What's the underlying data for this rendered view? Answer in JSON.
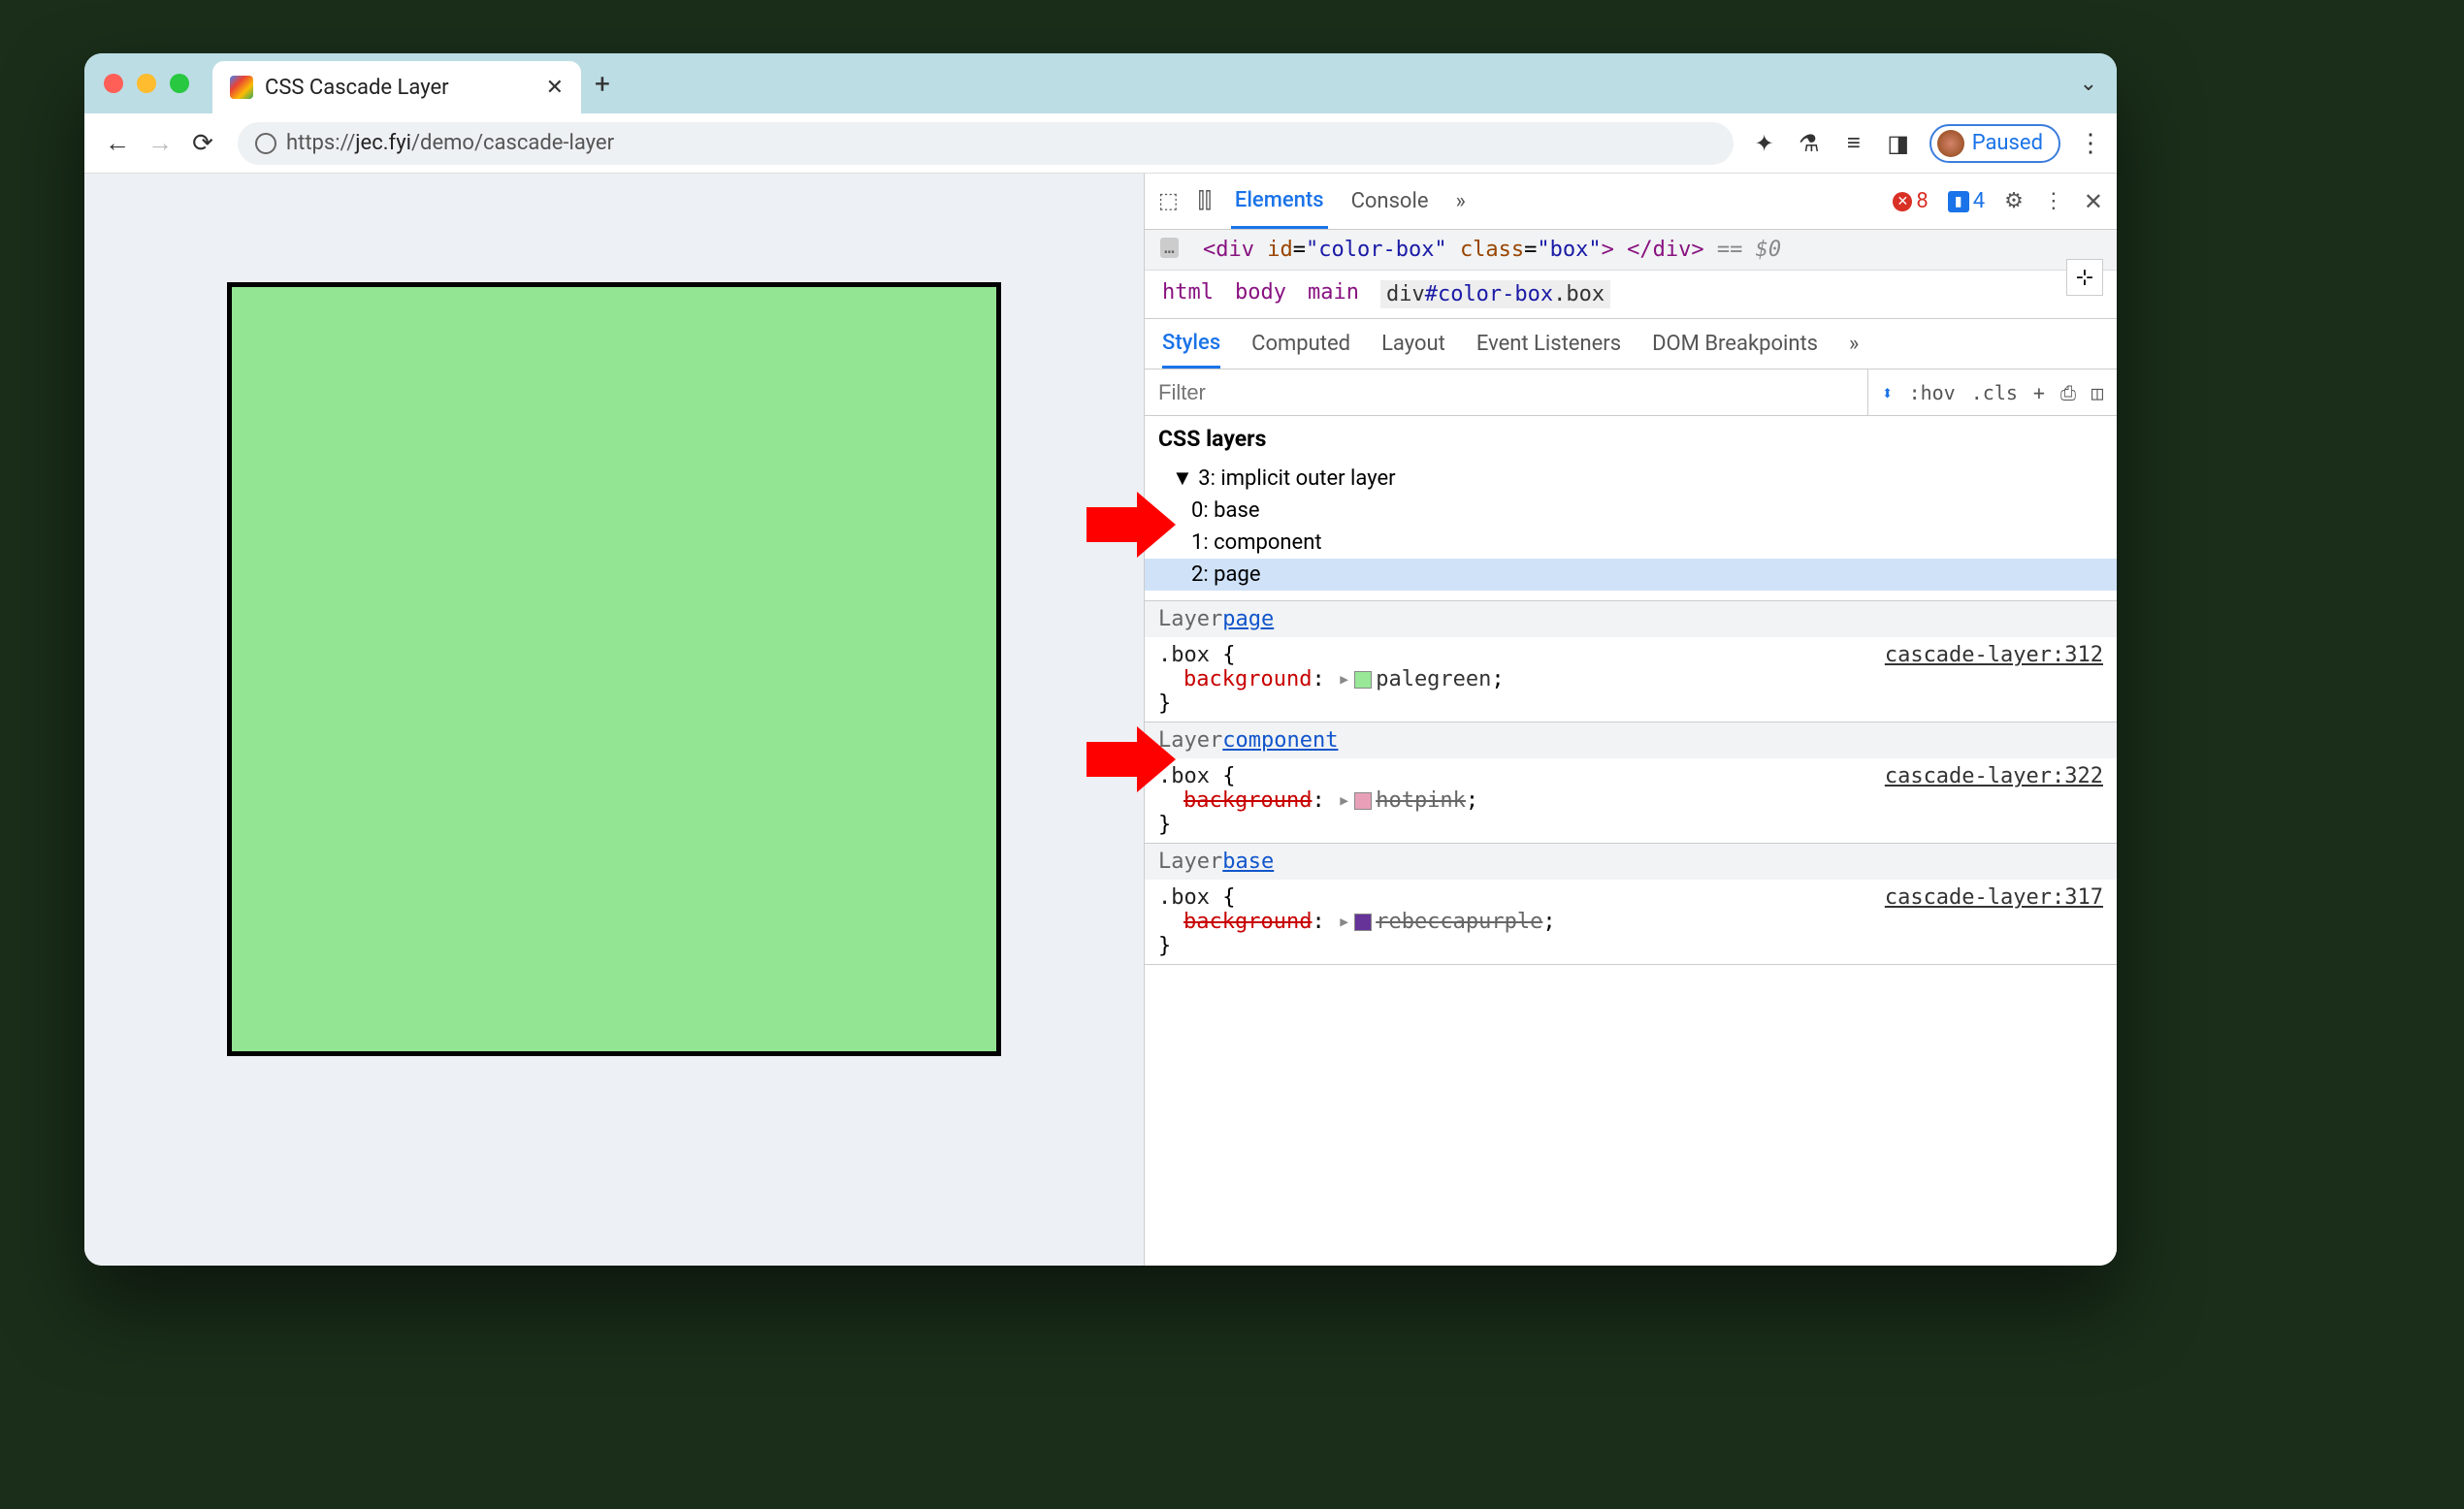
{
  "tab": {
    "title": "CSS Cascade Layer"
  },
  "url": {
    "scheme": "https://",
    "host": "jec.fyi",
    "path": "/demo/cascade-layer"
  },
  "toolbar": {
    "paused_label": "Paused"
  },
  "devtools": {
    "tabs": {
      "elements": "Elements",
      "console": "Console",
      "more": "»"
    },
    "errors": "8",
    "issues": "4",
    "dom_html": "<div id=\"color-box\" class=\"box\">",
    "dom_close": "</div>",
    "dom_eq": "== $0",
    "breadcrumbs": [
      "html",
      "body",
      "main"
    ],
    "breadcrumb_selected": "div#color-box.box",
    "styles_tabs": [
      "Styles",
      "Computed",
      "Layout",
      "Event Listeners",
      "DOM Breakpoints"
    ],
    "styles_more": "»",
    "filter_placeholder": "Filter",
    "filter_tools": {
      "hov": ":hov",
      "cls": ".cls",
      "plus": "+"
    },
    "layers_title": "CSS layers",
    "layers_root": "3: implicit outer layer",
    "layers": [
      "0: base",
      "1: component",
      "2: page"
    ],
    "rules": [
      {
        "layer_label": "Layer ",
        "layer_link": "page",
        "selector": ".box",
        "source": "cascade-layer:312",
        "prop": "background",
        "value": "palegreen",
        "swatch_color": "#98e898",
        "struck": false
      },
      {
        "layer_label": "Layer ",
        "layer_link": "component",
        "selector": ".box",
        "source": "cascade-layer:322",
        "prop": "background",
        "value": "hotpink",
        "swatch_color": "#e8a0b8",
        "struck": true
      },
      {
        "layer_label": "Layer ",
        "layer_link": "base",
        "selector": ".box",
        "source": "cascade-layer:317",
        "prop": "background",
        "value": "rebeccapurple",
        "swatch_color": "#663399",
        "struck": true
      }
    ]
  },
  "page": {
    "box_color": "#93e493"
  },
  "annotations": {
    "arrow_color": "#ff0000"
  }
}
